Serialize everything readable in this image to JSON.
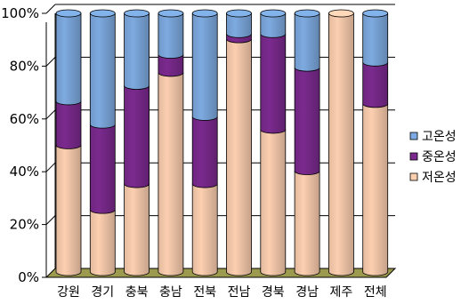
{
  "chart_data": {
    "type": "bar",
    "stacked": true,
    "percent_stacked": true,
    "style": "3d-cylinder",
    "categories": [
      "강원",
      "경기",
      "충북",
      "충남",
      "전북",
      "전남",
      "경북",
      "경남",
      "제주",
      "전체"
    ],
    "series": [
      {
        "name": "저온성",
        "color": "#FCCFB0",
        "values": [
          49,
          24,
          34,
          77,
          34,
          90,
          55,
          39,
          100,
          65
        ]
      },
      {
        "name": "중온성",
        "color": "#7B2A8E",
        "values": [
          17,
          33,
          38,
          7,
          26,
          2,
          37,
          40,
          0,
          16
        ]
      },
      {
        "name": "고온성",
        "color": "#7DAAE0",
        "values": [
          34,
          43,
          28,
          16,
          40,
          8,
          8,
          21,
          0,
          19
        ]
      }
    ],
    "y_ticks": [
      "0%",
      "20%",
      "40%",
      "60%",
      "80%",
      "100%"
    ],
    "ylim": [
      0,
      100
    ],
    "grid": true,
    "legend_position": "right",
    "floor_color": "#9C9A4E"
  }
}
